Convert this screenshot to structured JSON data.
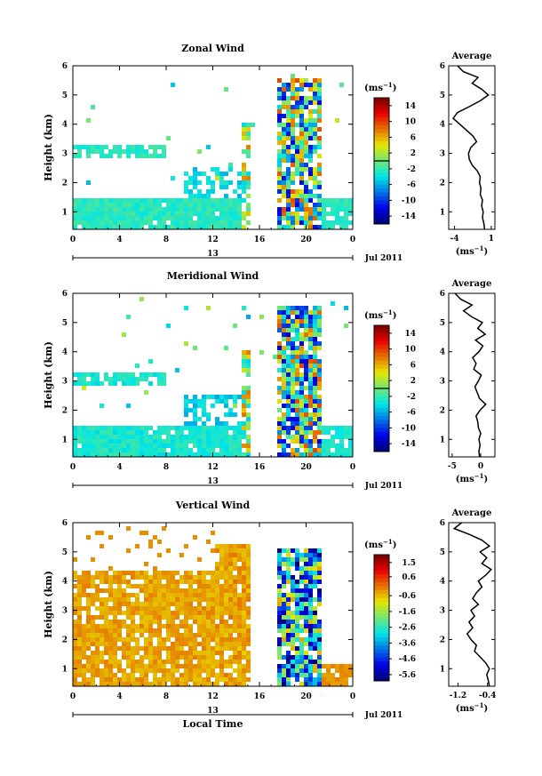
{
  "chart_data": [
    {
      "type": "heatmap",
      "title": "Zonal Wind",
      "xlabel": "",
      "ylabel": "Height (km)",
      "x_ticks": [
        "0",
        "4",
        "8",
        "12",
        "16",
        "20",
        "0"
      ],
      "xlim": [
        0,
        24
      ],
      "y_ticks": [
        "1",
        "2",
        "3",
        "4",
        "5",
        "6"
      ],
      "ylim": [
        0.4,
        6
      ],
      "date_bar_label": "13",
      "date_label": "Jul 2011",
      "colorbar": {
        "unit": "(ms",
        "unit_sup": "−1",
        "unit_close": ")",
        "ticks": [
          "14",
          "10",
          "6",
          "2",
          "-2",
          "-6",
          "-10",
          "-14"
        ],
        "range": [
          -16,
          16
        ],
        "marker_value": 0
      },
      "average": {
        "title": "Average",
        "xlabel": "(ms",
        "xlabel_sup": "−1",
        "xlabel_close": ")",
        "x_ticks": [
          {
            "v": -4,
            "label": "-4"
          },
          {
            "v": 1,
            "label": "1"
          }
        ],
        "xlim": [
          -4.8,
          1.5
        ],
        "profile": [
          [
            0.4,
            0.1
          ],
          [
            0.6,
            0.0
          ],
          [
            0.8,
            -0.2
          ],
          [
            1.0,
            -0.1
          ],
          [
            1.2,
            -0.3
          ],
          [
            1.4,
            -0.2
          ],
          [
            1.6,
            -0.5
          ],
          [
            1.8,
            -0.4
          ],
          [
            2.0,
            -0.6
          ],
          [
            2.2,
            -0.5
          ],
          [
            2.4,
            -0.9
          ],
          [
            2.6,
            -1.6
          ],
          [
            2.8,
            -2.0
          ],
          [
            3.0,
            -2.1
          ],
          [
            3.2,
            -1.8
          ],
          [
            3.4,
            -1.0
          ],
          [
            3.6,
            -1.5
          ],
          [
            3.8,
            -2.4
          ],
          [
            4.0,
            -3.3
          ],
          [
            4.2,
            -4.2
          ],
          [
            4.4,
            -3.6
          ],
          [
            4.6,
            -2.0
          ],
          [
            4.8,
            -0.5
          ],
          [
            5.0,
            0.6
          ],
          [
            5.2,
            -0.3
          ],
          [
            5.4,
            -1.6
          ],
          [
            5.6,
            -0.8
          ],
          [
            5.8,
            -2.8
          ],
          [
            6.0,
            -3.6
          ]
        ]
      }
    },
    {
      "type": "heatmap",
      "title": "Meridional Wind",
      "xlabel": "",
      "ylabel": "Height (km)",
      "x_ticks": [
        "0",
        "4",
        "8",
        "12",
        "16",
        "20",
        "0"
      ],
      "xlim": [
        0,
        24
      ],
      "y_ticks": [
        "1",
        "2",
        "3",
        "4",
        "5",
        "6"
      ],
      "ylim": [
        0.4,
        6
      ],
      "date_bar_label": "13",
      "date_label": "Jul 2011",
      "colorbar": {
        "unit": "(ms",
        "unit_sup": "−1",
        "unit_close": ")",
        "ticks": [
          "14",
          "10",
          "6",
          "2",
          "-2",
          "-6",
          "-10",
          "-14"
        ],
        "range": [
          -16,
          16
        ],
        "marker_value": 0
      },
      "average": {
        "title": "Average",
        "xlabel": "(ms",
        "xlabel_sup": "−1",
        "xlabel_close": ")",
        "x_ticks": [
          {
            "v": -5,
            "label": "-5"
          },
          {
            "v": 0,
            "label": "0"
          }
        ],
        "xlim": [
          -5.6,
          2.5
        ],
        "profile": [
          [
            0.4,
            -0.2
          ],
          [
            0.6,
            -0.3
          ],
          [
            0.8,
            -0.1
          ],
          [
            1.0,
            -0.3
          ],
          [
            1.2,
            0.0
          ],
          [
            1.4,
            -0.4
          ],
          [
            1.6,
            -0.5
          ],
          [
            1.8,
            -0.8
          ],
          [
            2.0,
            -0.1
          ],
          [
            2.2,
            0.9
          ],
          [
            2.4,
            -0.2
          ],
          [
            2.6,
            -0.6
          ],
          [
            2.8,
            -1.0
          ],
          [
            3.0,
            -0.4
          ],
          [
            3.2,
            0.1
          ],
          [
            3.4,
            -1.2
          ],
          [
            3.6,
            -0.8
          ],
          [
            3.8,
            -1.4
          ],
          [
            4.0,
            -0.3
          ],
          [
            4.2,
            0.4
          ],
          [
            4.4,
            -0.9
          ],
          [
            4.6,
            0.8
          ],
          [
            4.8,
            -0.5
          ],
          [
            5.0,
            0.3
          ],
          [
            5.2,
            -1.6
          ],
          [
            5.4,
            -3.0
          ],
          [
            5.6,
            -1.5
          ],
          [
            5.8,
            -3.5
          ],
          [
            6.0,
            -4.5
          ]
        ]
      }
    },
    {
      "type": "heatmap",
      "title": "Vertical Wind",
      "xlabel": "Local Time",
      "ylabel": "Height (km)",
      "x_ticks": [
        "0",
        "4",
        "8",
        "12",
        "16",
        "20",
        "0"
      ],
      "xlim": [
        0,
        24
      ],
      "y_ticks": [
        "1",
        "2",
        "3",
        "4",
        "5",
        "6"
      ],
      "ylim": [
        0.4,
        6
      ],
      "date_bar_label": "13",
      "date_label": "Jul 2011",
      "colorbar": {
        "unit": "(ms",
        "unit_sup": "−1",
        "unit_close": ")",
        "ticks": [
          "1.5",
          "0.6",
          "-0.6",
          "-1.6",
          "-2.6",
          "-3.6",
          "-4.6",
          "-5.6"
        ],
        "range": [
          -6.0,
          2.0
        ],
        "marker_value": null
      },
      "average": {
        "title": "Average",
        "xlabel": "(ms",
        "xlabel_sup": "−1",
        "xlabel_close": ")",
        "x_ticks": [
          {
            "v": -1.2,
            "label": "-1.2"
          },
          {
            "v": -0.4,
            "label": "-0.4"
          }
        ],
        "xlim": [
          -1.45,
          -0.2
        ],
        "profile": [
          [
            0.4,
            -0.35
          ],
          [
            0.6,
            -0.38
          ],
          [
            0.8,
            -0.42
          ],
          [
            1.0,
            -0.35
          ],
          [
            1.2,
            -0.45
          ],
          [
            1.4,
            -0.6
          ],
          [
            1.6,
            -0.75
          ],
          [
            1.8,
            -0.7
          ],
          [
            2.0,
            -0.85
          ],
          [
            2.2,
            -0.95
          ],
          [
            2.4,
            -0.8
          ],
          [
            2.6,
            -0.9
          ],
          [
            2.8,
            -0.75
          ],
          [
            3.0,
            -0.85
          ],
          [
            3.2,
            -0.65
          ],
          [
            3.4,
            -0.8
          ],
          [
            3.6,
            -0.7
          ],
          [
            3.8,
            -0.55
          ],
          [
            4.0,
            -0.65
          ],
          [
            4.2,
            -0.45
          ],
          [
            4.4,
            -0.3
          ],
          [
            4.6,
            -0.55
          ],
          [
            4.8,
            -0.42
          ],
          [
            5.0,
            -0.6
          ],
          [
            5.2,
            -0.35
          ],
          [
            5.4,
            -0.55
          ],
          [
            5.6,
            -0.9
          ],
          [
            5.8,
            -1.3
          ],
          [
            6.0,
            -1.1
          ]
        ]
      }
    }
  ]
}
